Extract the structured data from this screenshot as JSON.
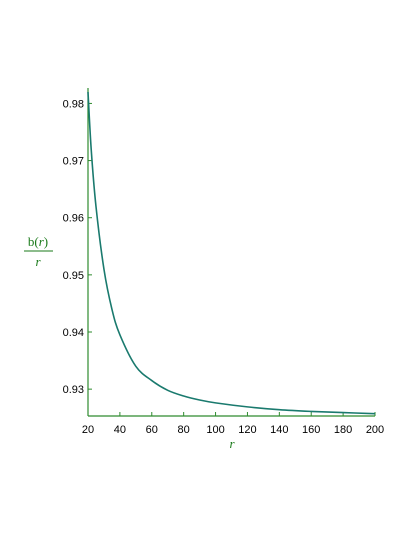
{
  "chart_data": {
    "type": "line",
    "title": "",
    "xlabel": "r",
    "ylabel": {
      "numerator": "b(r)",
      "denominator": "r"
    },
    "xlim": [
      20,
      200
    ],
    "ylim": [
      0.9253,
      0.9827
    ],
    "x_ticks": [
      20,
      40,
      60,
      80,
      100,
      120,
      140,
      160,
      180,
      200
    ],
    "x_tick_labels": [
      "20",
      "40",
      "60",
      "80",
      "100",
      "120",
      "140",
      "160",
      "180",
      "200"
    ],
    "y_ticks": [
      0.93,
      0.94,
      0.95,
      0.96,
      0.97,
      0.98
    ],
    "y_tick_labels": [
      "0.93",
      "0.94",
      "0.95",
      "0.96",
      "0.97",
      "0.98"
    ],
    "grid": false,
    "legend": "none",
    "series": [
      {
        "color": "#1a7a6e",
        "x": [
          20,
          22,
          25,
          30,
          35,
          40,
          50,
          60,
          70,
          80,
          90,
          100,
          120,
          140,
          160,
          180,
          200
        ],
        "y": [
          0.982,
          0.972,
          0.962,
          0.951,
          0.944,
          0.9395,
          0.934,
          0.9315,
          0.9298,
          0.9288,
          0.9281,
          0.9276,
          0.9269,
          0.9264,
          0.9261,
          0.9259,
          0.9257
        ]
      }
    ]
  },
  "colors": {
    "axis": "#2e8b2e",
    "label": "#1a7a1a",
    "curve": "#1a7a6e"
  }
}
